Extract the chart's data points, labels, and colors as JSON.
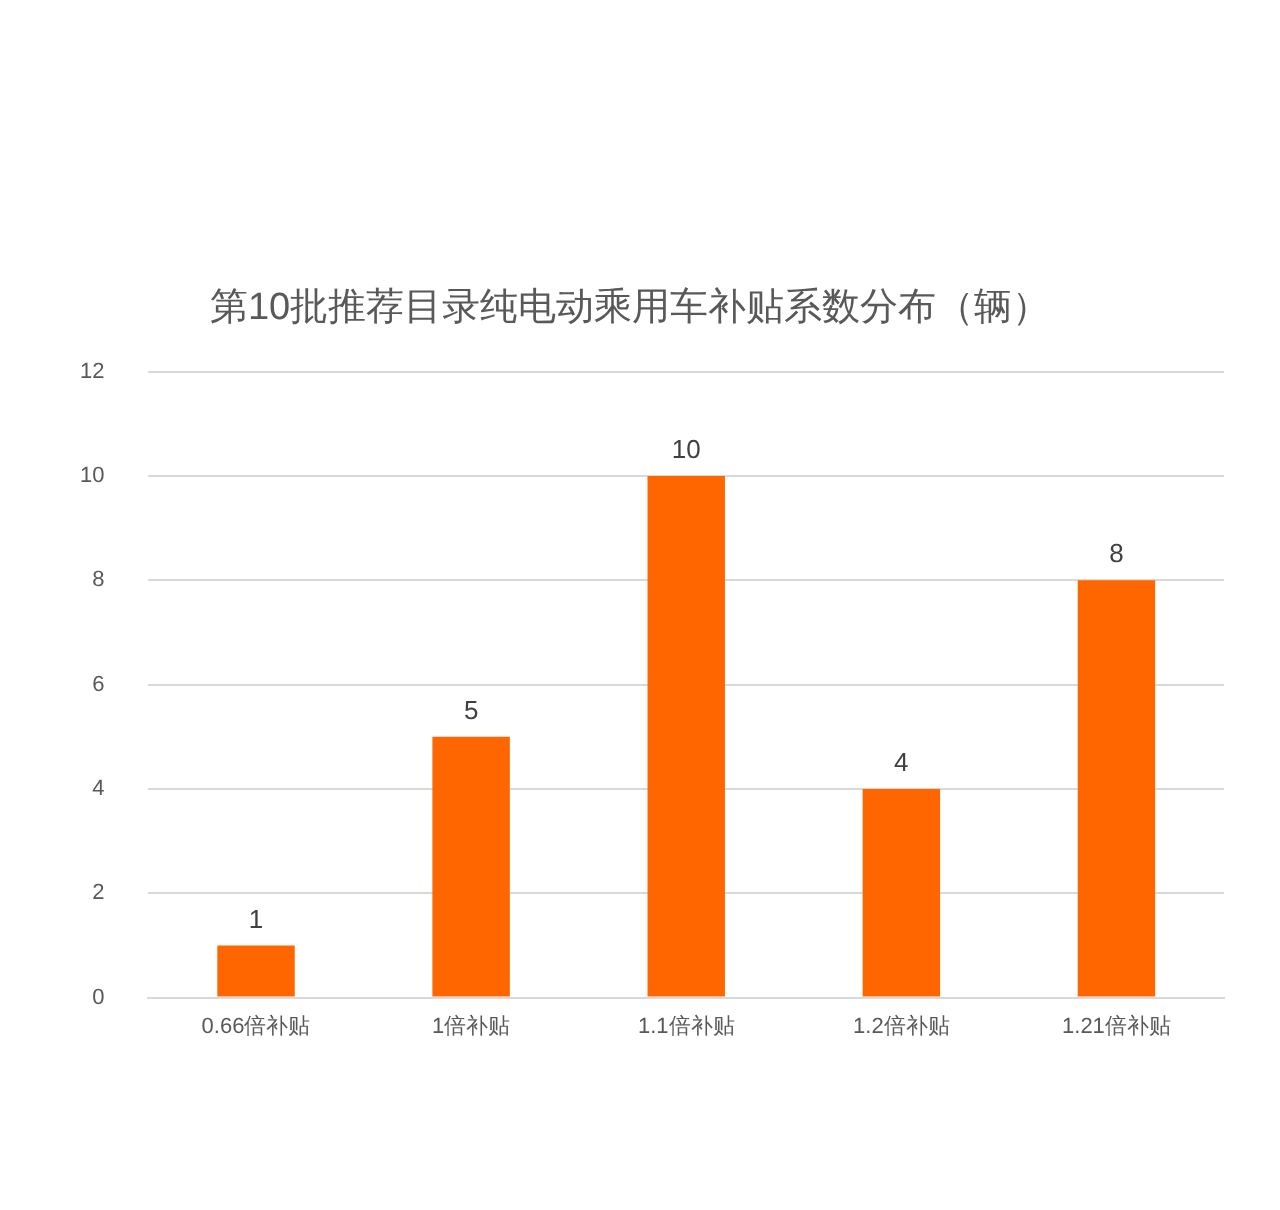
{
  "chart_data": {
    "type": "bar",
    "title": "第10批推荐目录纯电动乘用车补贴系数分布（辆）",
    "categories": [
      "0.66倍补贴",
      "1倍补贴",
      "1.1倍补贴",
      "1.2倍补贴",
      "1.21倍补贴"
    ],
    "values": [
      1,
      5,
      10,
      4,
      8
    ],
    "color": "#ff6600",
    "ylim": [
      0,
      12
    ],
    "yticks": [
      0,
      2,
      4,
      6,
      8,
      10,
      12
    ],
    "grid": "y",
    "data_labels": true
  }
}
